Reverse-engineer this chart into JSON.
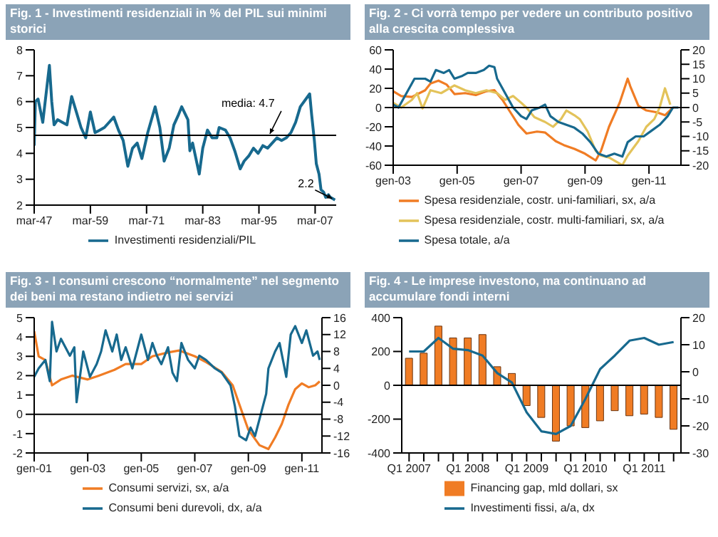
{
  "chart_data": [
    {
      "type": "line",
      "title": "Fig. 1 - Investimenti residenziali in % del PIL sui minimi storici",
      "marker": "none",
      "legend": "bottom",
      "xlim": [
        "1947-03",
        "2011-09"
      ],
      "xticks": [
        {
          "value": "1947-03",
          "label": "mar-47"
        },
        {
          "value": "1959-03",
          "label": "mar-59"
        },
        {
          "value": "1971-03",
          "label": "mar-71"
        },
        {
          "value": "1983-03",
          "label": "mar-83"
        },
        {
          "value": "1995-03",
          "label": "mar-95"
        },
        {
          "value": "2007-03",
          "label": "mar-07"
        }
      ],
      "ylim": [
        2,
        8
      ],
      "yticks": [
        2,
        3,
        4,
        5,
        6,
        7,
        8
      ],
      "ref_lines": [
        {
          "axis": "y",
          "value": 4.7,
          "label": "media: 4.7",
          "color": "#000000"
        }
      ],
      "annotations": [
        {
          "text": "2.2",
          "x": "2011-06",
          "y": 2.2
        }
      ],
      "series": [
        {
          "name": "Investimenti residenziali/PIL",
          "color": "#17698e",
          "x": [
            "1947-03",
            "1947-06",
            "1948-01",
            "1949-01",
            "1950-06",
            "1950-12",
            "1951-06",
            "1952-03",
            "1953-03",
            "1954-03",
            "1955-03",
            "1956-03",
            "1957-03",
            "1958-03",
            "1959-03",
            "1960-03",
            "1961-03",
            "1962-03",
            "1963-03",
            "1964-03",
            "1965-03",
            "1966-03",
            "1967-03",
            "1968-03",
            "1969-03",
            "1970-03",
            "1971-06",
            "1973-01",
            "1974-01",
            "1974-12",
            "1976-01",
            "1977-01",
            "1978-01",
            "1978-09",
            "1980-01",
            "1980-06",
            "1981-01",
            "1982-06",
            "1983-03",
            "1984-03",
            "1985-03",
            "1986-03",
            "1986-09",
            "1988-01",
            "1989-01",
            "1990-01",
            "1991-03",
            "1992-01",
            "1993-01",
            "1994-01",
            "1995-01",
            "1996-01",
            "1997-01",
            "1998-01",
            "1999-01",
            "2000-01",
            "2001-01",
            "2002-01",
            "2003-01",
            "2004-01",
            "2006-01",
            "2006-06",
            "2007-01",
            "2007-06",
            "2008-01",
            "2008-06",
            "2009-01",
            "2009-06",
            "2010-01",
            "2010-06",
            "2011-06"
          ],
          "values": [
            4.3,
            6.0,
            6.1,
            5.2,
            7.4,
            6.0,
            5.1,
            5.3,
            5.2,
            5.1,
            6.2,
            5.6,
            5.0,
            4.6,
            5.6,
            4.8,
            4.9,
            5.0,
            5.2,
            5.4,
            4.9,
            4.5,
            3.5,
            4.2,
            4.4,
            3.8,
            4.8,
            5.8,
            5.0,
            3.7,
            4.2,
            5.1,
            5.5,
            5.8,
            5.3,
            4.1,
            4.4,
            3.2,
            4.2,
            4.9,
            4.6,
            4.6,
            5.0,
            4.9,
            4.6,
            4.1,
            3.4,
            3.7,
            3.9,
            4.2,
            4.0,
            4.3,
            4.2,
            4.4,
            4.6,
            4.5,
            4.6,
            4.8,
            5.2,
            5.8,
            6.3,
            5.5,
            4.5,
            3.6,
            3.2,
            2.6,
            2.5,
            2.3,
            2.4,
            2.3,
            2.2
          ]
        }
      ]
    },
    {
      "type": "line",
      "title": "Fig. 2 - Ci vorrà tempo per vedere un contributo positivo alla crescita complessiva",
      "marker": "none",
      "legend": "bottom",
      "xlim": [
        "2003-01",
        "2012-01"
      ],
      "xticks": [
        {
          "value": "2003-01",
          "label": "gen-03"
        },
        {
          "value": "2005-01",
          "label": "gen-05"
        },
        {
          "value": "2007-01",
          "label": "gen-07"
        },
        {
          "value": "2009-01",
          "label": "gen-09"
        },
        {
          "value": "2011-01",
          "label": "gen-11"
        }
      ],
      "ylim": [
        -60,
        60
      ],
      "yticks": [
        -60,
        -40,
        -20,
        0,
        20,
        40,
        60
      ],
      "y2lim": [
        -20,
        20
      ],
      "y2ticks": [
        -20,
        -15,
        -10,
        -5,
        0,
        5,
        10,
        15,
        20
      ],
      "ref_lines": [
        {
          "axis": "y",
          "value": 0,
          "color": "#000000"
        }
      ],
      "series": [
        {
          "name": "Spesa residenziale, costr. uni-familiari, sx, a/a",
          "color": "#f07c24",
          "x": [
            "2003-01",
            "2003-04",
            "2003-08",
            "2004-01",
            "2004-03",
            "2004-06",
            "2004-09",
            "2004-12",
            "2005-04",
            "2005-08",
            "2005-12",
            "2006-03",
            "2006-06",
            "2006-09",
            "2006-12",
            "2007-03",
            "2007-07",
            "2007-10",
            "2008-02",
            "2008-05",
            "2008-09",
            "2009-01",
            "2009-05",
            "2009-07",
            "2009-10",
            "2010-02",
            "2010-05",
            "2010-06",
            "2010-09",
            "2010-12",
            "2011-04",
            "2011-07",
            "2011-10"
          ],
          "values": [
            17,
            12,
            11,
            18,
            25,
            28,
            24,
            14,
            15,
            13,
            17,
            18,
            8,
            -5,
            -18,
            -27,
            -25,
            -26,
            -35,
            -39,
            -43,
            -48,
            -55,
            -45,
            -20,
            5,
            30,
            22,
            2,
            -3,
            -5,
            -8,
            0
          ]
        },
        {
          "name": "Spesa residenziale, costr. multi-familiari, sx, a/a",
          "color": "#e3c35a",
          "x": [
            "2003-01",
            "2003-04",
            "2003-08",
            "2003-10",
            "2003-12",
            "2004-03",
            "2004-07",
            "2004-12",
            "2005-04",
            "2005-08",
            "2005-12",
            "2006-04",
            "2006-07",
            "2006-10",
            "2007-01",
            "2007-03",
            "2007-06",
            "2007-10",
            "2008-01",
            "2008-04",
            "2008-06",
            "2008-09",
            "2008-11",
            "2009-02",
            "2009-05",
            "2009-07",
            "2009-10",
            "2010-03",
            "2010-05",
            "2010-09",
            "2010-12",
            "2011-03",
            "2011-05",
            "2011-07",
            "2011-09"
          ],
          "values": [
            5,
            0,
            8,
            15,
            -1,
            18,
            15,
            23,
            18,
            15,
            18,
            15,
            8,
            12,
            5,
            0,
            -10,
            -15,
            -20,
            -12,
            -3,
            -8,
            -12,
            -25,
            -45,
            -50,
            -52,
            -60,
            -50,
            -35,
            -20,
            -12,
            0,
            20,
            3
          ]
        },
        {
          "name": "Spesa totale, a/a",
          "color": "#17698e",
          "axis": "y2",
          "x": [
            "2003-01",
            "2003-03",
            "2003-06",
            "2003-09",
            "2004-01",
            "2004-03",
            "2004-05",
            "2004-08",
            "2004-10",
            "2004-12",
            "2005-03",
            "2005-05",
            "2005-08",
            "2005-11",
            "2006-01",
            "2006-03",
            "2006-04",
            "2006-07",
            "2006-10",
            "2007-01",
            "2007-03",
            "2007-05",
            "2007-08",
            "2007-10",
            "2007-12",
            "2008-03",
            "2008-06",
            "2008-09",
            "2008-12",
            "2009-03",
            "2009-06",
            "2009-09",
            "2009-12",
            "2010-03",
            "2010-05",
            "2010-08",
            "2010-11",
            "2011-02",
            "2011-05",
            "2011-08",
            "2011-10",
            "2011-12"
          ],
          "values": [
            1,
            0,
            5,
            10,
            10,
            9,
            13,
            12,
            13,
            10,
            11,
            12,
            12,
            13,
            14.5,
            14,
            10,
            5,
            0,
            -3,
            -4,
            -1,
            0,
            1,
            -3,
            -5,
            -6,
            -7,
            -9,
            -12,
            -16,
            -17,
            -16,
            -17,
            -12,
            -10,
            -10,
            -8,
            -6,
            -3,
            0,
            0
          ]
        }
      ]
    },
    {
      "type": "line",
      "title": "Fig. 3 - I consumi crescono “normalmente” nel segmento dei beni ma restano indietro nei servizi",
      "marker": "none",
      "legend": "bottom",
      "xlim": [
        "2001-01",
        "2011-10"
      ],
      "xticks": [
        {
          "value": "2001-01",
          "label": "gen-01"
        },
        {
          "value": "2003-01",
          "label": "gen-03"
        },
        {
          "value": "2005-01",
          "label": "gen-05"
        },
        {
          "value": "2007-01",
          "label": "gen-07"
        },
        {
          "value": "2009-01",
          "label": "gen-09"
        },
        {
          "value": "2011-01",
          "label": "gen-11"
        }
      ],
      "ylim": [
        -2,
        5
      ],
      "yticks": [
        -2,
        -1,
        0,
        1,
        2,
        3,
        4,
        5
      ],
      "y2lim": [
        -16,
        16
      ],
      "y2ticks": [
        -16,
        -12,
        -8,
        -4,
        0,
        4,
        8,
        12,
        16
      ],
      "ref_lines": [
        {
          "axis": "y",
          "value": 0,
          "color": "#000000"
        }
      ],
      "series": [
        {
          "name": "Consumi servizi, sx, a/a",
          "color": "#f07c24",
          "x": [
            "2001-01",
            "2001-03",
            "2001-06",
            "2001-09",
            "2002-01",
            "2002-06",
            "2003-01",
            "2003-06",
            "2004-01",
            "2004-06",
            "2005-01",
            "2005-06",
            "2006-01",
            "2006-06",
            "2007-01",
            "2007-06",
            "2008-01",
            "2008-06",
            "2008-09",
            "2009-01",
            "2009-06",
            "2009-10",
            "2010-01",
            "2010-04",
            "2010-07",
            "2010-10",
            "2011-01",
            "2011-04",
            "2011-07",
            "2011-09"
          ],
          "values": [
            4.3,
            3.0,
            2.8,
            1.5,
            1.8,
            2.0,
            1.8,
            2.0,
            2.3,
            2.6,
            2.6,
            3.0,
            3.2,
            3.3,
            3.0,
            2.7,
            2.2,
            1.5,
            0.5,
            -0.8,
            -1.6,
            -1.8,
            -1.2,
            -0.5,
            0.5,
            1.3,
            1.6,
            1.4,
            1.5,
            1.7
          ]
        },
        {
          "name": "Consumi beni durevoli, dx, a/a",
          "color": "#17698e",
          "axis": "y2",
          "x": [
            "2001-01",
            "2001-03",
            "2001-06",
            "2001-08",
            "2001-09",
            "2001-11",
            "2002-01",
            "2002-05",
            "2002-07",
            "2002-08",
            "2002-11",
            "2003-02",
            "2003-05",
            "2003-07",
            "2003-09",
            "2003-12",
            "2004-02",
            "2004-04",
            "2004-06",
            "2004-09",
            "2004-11",
            "2005-01",
            "2005-04",
            "2005-06",
            "2005-08",
            "2005-10",
            "2006-01",
            "2006-03",
            "2006-05",
            "2006-07",
            "2006-10",
            "2007-01",
            "2007-03",
            "2007-06",
            "2007-10",
            "2008-01",
            "2008-05",
            "2008-07",
            "2008-09",
            "2008-12",
            "2009-02",
            "2009-04",
            "2009-07",
            "2009-09",
            "2009-10",
            "2010-01",
            "2010-03",
            "2010-06",
            "2010-08",
            "2010-10",
            "2011-01",
            "2011-03",
            "2011-06",
            "2011-08",
            "2011-09"
          ],
          "values": [
            2,
            4,
            6,
            1,
            15,
            8,
            11,
            7,
            9,
            -4,
            8,
            2,
            5,
            8,
            13,
            8,
            12,
            6,
            9,
            4,
            8,
            12,
            6,
            10,
            7,
            5,
            9,
            3,
            1,
            10,
            6,
            4,
            7,
            6,
            4,
            3,
            0,
            -5,
            -12,
            -13,
            -10,
            -12,
            -6,
            -2,
            4,
            8,
            10,
            2,
            12,
            14,
            10,
            13,
            7,
            8,
            6
          ]
        }
      ]
    },
    {
      "type": "bar",
      "title": "Fig. 4 - Le imprese investono, ma continuano ad accumulare fondi interni",
      "marker": "none",
      "legend": "bottom",
      "categories": [
        "Q1 2007",
        null,
        null,
        null,
        "Q1 2008",
        null,
        null,
        null,
        "Q1 2009",
        null,
        null,
        null,
        "Q1 2010",
        null,
        null,
        null,
        "Q1 2011",
        null,
        null
      ],
      "ylim": [
        -400,
        400
      ],
      "yticks": [
        -400,
        -200,
        0,
        200,
        400
      ],
      "y2lim": [
        -30,
        20
      ],
      "y2ticks": [
        -30,
        -20,
        -10,
        0,
        10,
        20
      ],
      "ref_lines": [
        {
          "axis": "y",
          "value": 0,
          "color": "#000000"
        }
      ],
      "series": [
        {
          "name": "Financing gap, mld dollari, sx",
          "color": "#f07c24",
          "values": [
            160,
            190,
            350,
            280,
            280,
            300,
            110,
            70,
            -120,
            -190,
            -330,
            -240,
            -250,
            -210,
            -150,
            -180,
            -170,
            -190,
            -260
          ]
        },
        {
          "name": "Investimenti fissi, a/a, dx",
          "type": "line",
          "color": "#17698e",
          "axis": "y2",
          "values": [
            7.5,
            7.5,
            12.5,
            8.5,
            8,
            6,
            -0.5,
            -4,
            -15,
            -22,
            -23,
            -20,
            -10,
            1,
            6,
            11.5,
            12.5,
            10,
            11
          ]
        }
      ]
    }
  ]
}
